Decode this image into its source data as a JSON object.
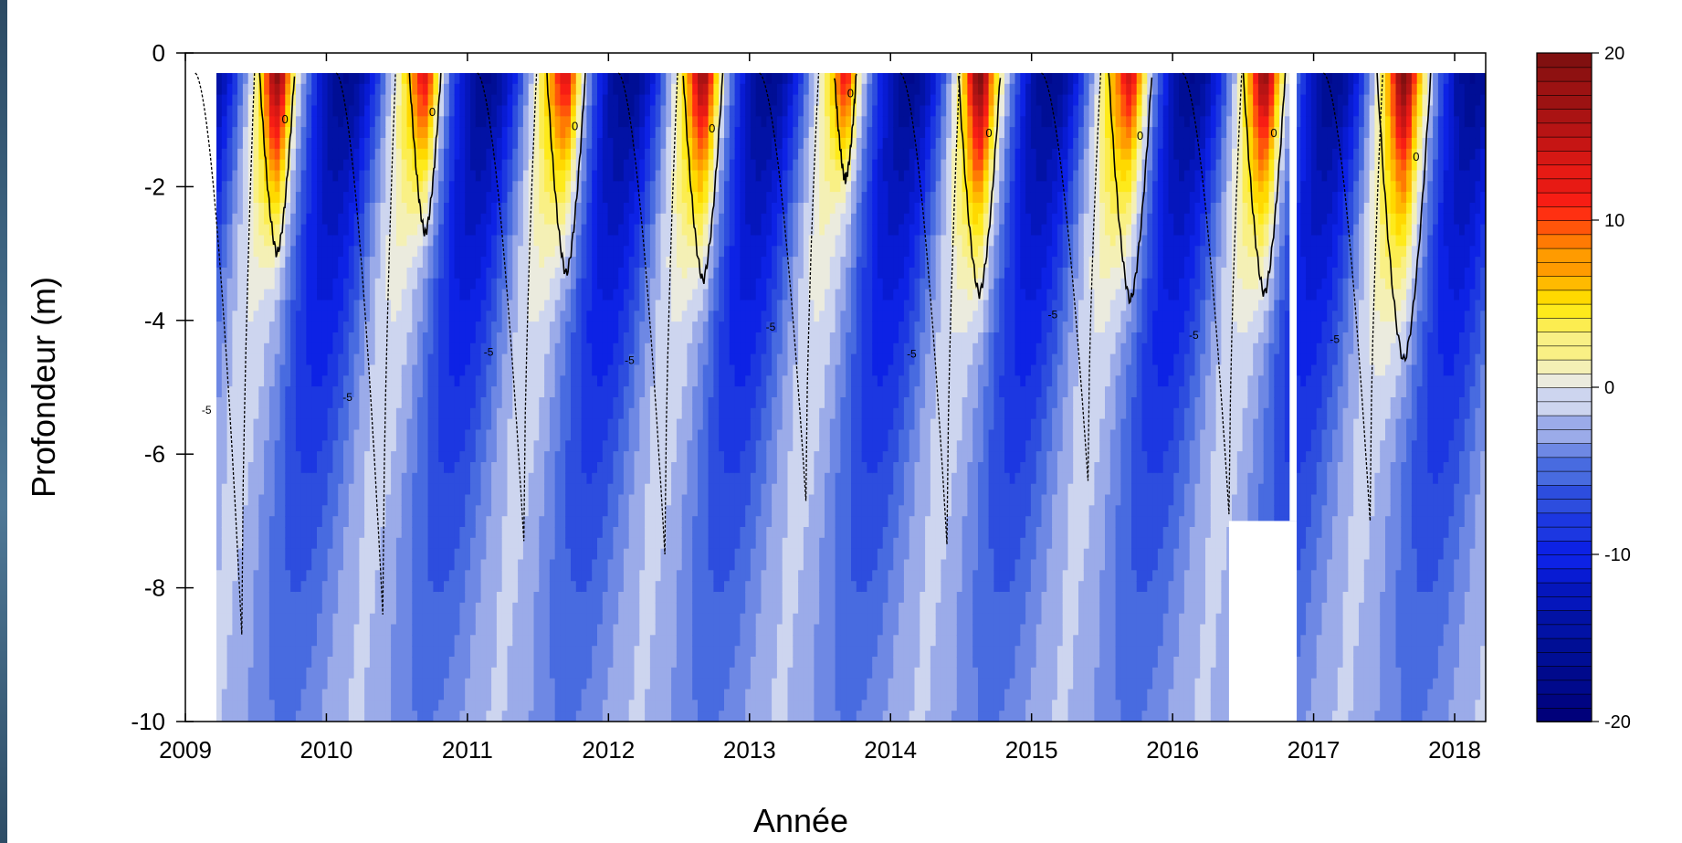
{
  "chart_data": {
    "type": "heatmap",
    "title": "",
    "xlabel": "Année",
    "ylabel": "Profondeur (m)",
    "xlim": [
      2009,
      2018.22
    ],
    "ylim": [
      -10,
      0
    ],
    "x_ticks": [
      "2009",
      "2010",
      "2011",
      "2012",
      "2013",
      "2014",
      "2015",
      "2016",
      "2017",
      "2018"
    ],
    "y_ticks": [
      "0",
      "-2",
      "-4",
      "-6",
      "-8",
      "-10"
    ],
    "data_x_range": [
      2009.22,
      2018.22
    ],
    "data_top_depth": -0.3,
    "colorbar": {
      "range": [
        -20,
        20
      ],
      "ticks": [
        "20",
        "10",
        "0",
        "-10",
        "-20"
      ],
      "low_color": "#00007a",
      "mid_color": "#e6e8f2",
      "high_color": "#7a1010"
    },
    "contours": [
      "0",
      "-5"
    ],
    "missing_data": [
      {
        "x_from": 2016.4,
        "x_to": 2016.88,
        "depth_from": -7.0,
        "depth_to": -10
      },
      {
        "x_from": 2016.83,
        "x_to": 2016.88,
        "depth_from": -0.3,
        "depth_to": -7.0
      }
    ],
    "summers": [
      {
        "x": 2009.65,
        "max_temp": 12,
        "zero_depth": -3.0
      },
      {
        "x": 2010.7,
        "max_temp": 6,
        "zero_depth": -2.7
      },
      {
        "x": 2011.7,
        "max_temp": 6,
        "zero_depth": -3.3
      },
      {
        "x": 2012.67,
        "max_temp": 11,
        "zero_depth": -3.4
      },
      {
        "x": 2013.68,
        "max_temp": 4,
        "zero_depth": -1.9
      },
      {
        "x": 2014.63,
        "max_temp": 14,
        "zero_depth": -3.6
      },
      {
        "x": 2015.7,
        "max_temp": 6,
        "zero_depth": -3.7
      },
      {
        "x": 2016.65,
        "max_temp": 11,
        "zero_depth": -3.6
      },
      {
        "x": 2017.64,
        "max_temp": 14,
        "zero_depth": -4.6
      }
    ],
    "minus5_bottom": [
      {
        "x": 2009.35,
        "depth": -8.7
      },
      {
        "x": 2010.35,
        "depth": -8.4
      },
      {
        "x": 2011.35,
        "depth": -7.3
      },
      {
        "x": 2012.35,
        "depth": -7.5
      },
      {
        "x": 2013.35,
        "depth": -6.7
      },
      {
        "x": 2014.35,
        "depth": -7.35
      },
      {
        "x": 2015.35,
        "depth": -6.4
      },
      {
        "x": 2016.35,
        "depth": -6.9
      },
      {
        "x": 2017.35,
        "depth": -7.0
      }
    ],
    "contour_labels": {
      "zero": "0",
      "minus_five": "-5"
    }
  }
}
